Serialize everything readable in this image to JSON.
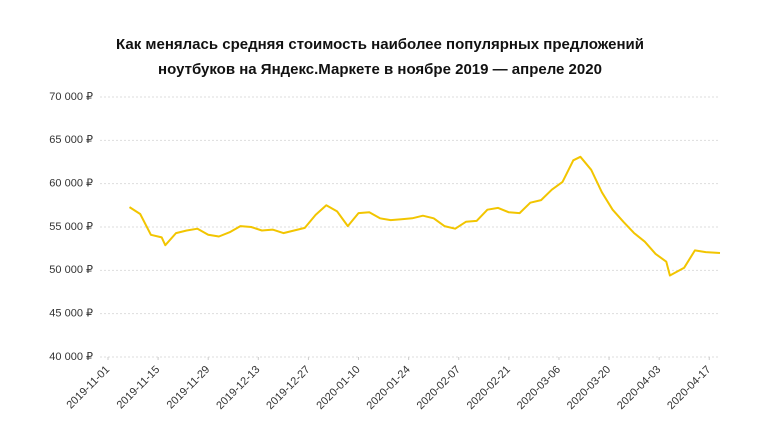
{
  "chart_data": {
    "type": "line",
    "title": [
      "Как менялась средняя стоимость наиболее популярных предложений",
      "ноутбуков на Яндекс.Маркете в ноябре 2019 — апреле 2020"
    ],
    "x": [
      "2019-11-07",
      "2019-11-10",
      "2019-11-13",
      "2019-11-16",
      "2019-11-17",
      "2019-11-20",
      "2019-11-23",
      "2019-11-26",
      "2019-11-29",
      "2019-12-02",
      "2019-12-05",
      "2019-12-08",
      "2019-12-11",
      "2019-12-14",
      "2019-12-17",
      "2019-12-20",
      "2019-12-23",
      "2019-12-26",
      "2019-12-29",
      "2020-01-01",
      "2020-01-04",
      "2020-01-07",
      "2020-01-10",
      "2020-01-13",
      "2020-01-16",
      "2020-01-19",
      "2020-01-22",
      "2020-01-25",
      "2020-01-28",
      "2020-01-31",
      "2020-02-03",
      "2020-02-06",
      "2020-02-09",
      "2020-02-12",
      "2020-02-15",
      "2020-02-18",
      "2020-02-21",
      "2020-02-24",
      "2020-02-27",
      "2020-03-01",
      "2020-03-04",
      "2020-03-07",
      "2020-03-10",
      "2020-03-12",
      "2020-03-15",
      "2020-03-18",
      "2020-03-21",
      "2020-03-24",
      "2020-03-27",
      "2020-03-30",
      "2020-04-02",
      "2020-04-05",
      "2020-04-06",
      "2020-04-10",
      "2020-04-13",
      "2020-04-16",
      "2020-04-20"
    ],
    "series": [
      {
        "color": "#f2c500",
        "values": [
          57300,
          56500,
          54100,
          53800,
          52900,
          54300,
          54600,
          54800,
          54100,
          53900,
          54400,
          55100,
          55000,
          54600,
          54700,
          54300,
          54600,
          54900,
          56400,
          57500,
          56800,
          55100,
          56600,
          56700,
          56000,
          55800,
          55900,
          56000,
          56300,
          56000,
          55100,
          54800,
          55600,
          55700,
          57000,
          57200,
          56700,
          56600,
          57800,
          58100,
          59300,
          60200,
          62700,
          63100,
          61600,
          59000,
          57000,
          55600,
          54300,
          53300,
          51900,
          51000,
          49400,
          50300,
          52300,
          52100,
          52000
        ]
      }
    ],
    "xlim": [
      "2019-11-01",
      "2020-04-20"
    ],
    "xticks": [
      "2019-11-01",
      "2019-11-15",
      "2019-11-29",
      "2019-12-13",
      "2019-12-27",
      "2020-01-10",
      "2020-01-24",
      "2020-02-07",
      "2020-02-21",
      "2020-03-06",
      "2020-03-20",
      "2020-04-03",
      "2020-04-17"
    ],
    "ylim": [
      40000,
      70000
    ],
    "yticks": [
      {
        "value": 40000,
        "label": "40 000 ₽"
      },
      {
        "value": 45000,
        "label": "45 000 ₽"
      },
      {
        "value": 50000,
        "label": "50 000 ₽"
      },
      {
        "value": 55000,
        "label": "55 000 ₽"
      },
      {
        "value": 60000,
        "label": "60 000 ₽"
      },
      {
        "value": 65000,
        "label": "65 000 ₽"
      },
      {
        "value": 70000,
        "label": "70 000 ₽"
      }
    ],
    "grid": true
  }
}
